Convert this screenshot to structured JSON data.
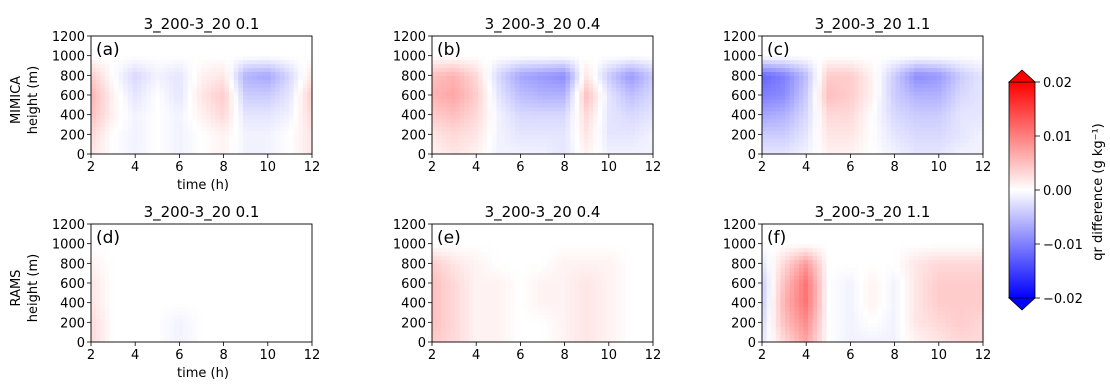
{
  "figure": {
    "colorbar": {
      "label": "qr difference (g kg⁻¹)",
      "ticks": [
        "0.02",
        "0.01",
        "0.00",
        "−0.01",
        "−0.02"
      ],
      "range": [
        -0.02,
        0.02
      ],
      "colors": {
        "min": "#0000ff",
        "mid": "#ffffff",
        "max": "#ff0000"
      },
      "extend": "both"
    },
    "row_labels": [
      {
        "model": "MIMICA",
        "ylabel": "height (m)"
      },
      {
        "model": "RAMS",
        "ylabel": "height (m)"
      }
    ],
    "xlabel": "time (h)"
  },
  "chart_data": [
    {
      "type": "heatmap",
      "tag": "(a)",
      "title": "3_200-3_20 0.1",
      "model": "MIMICA",
      "xlim": [
        2,
        12
      ],
      "ylim": [
        0,
        1200
      ],
      "xticks": [
        "2",
        "4",
        "6",
        "8",
        "10",
        "12"
      ],
      "yticks": [
        "0",
        "200",
        "400",
        "600",
        "800",
        "1000",
        "1200"
      ],
      "z_grid": {
        "x": [
          2,
          3,
          4,
          5,
          6,
          7,
          8,
          9,
          10,
          11,
          12
        ],
        "y": [
          0,
          200,
          400,
          600,
          800,
          1000,
          1200
        ],
        "z": [
          [
            0.002,
            0.0,
            -0.001,
            0.0,
            -0.001,
            0.0,
            0.001,
            -0.001,
            -0.001,
            0.0,
            0.002
          ],
          [
            0.003,
            0.0,
            -0.001,
            0.0,
            -0.001,
            0.0,
            0.001,
            -0.001,
            -0.001,
            0.0,
            0.002
          ],
          [
            0.005,
            0.001,
            -0.001,
            0.0,
            -0.001,
            0.001,
            0.003,
            -0.002,
            -0.002,
            -0.001,
            0.003
          ],
          [
            0.006,
            0.001,
            -0.002,
            0.0,
            -0.002,
            0.002,
            0.004,
            -0.004,
            -0.004,
            -0.002,
            0.004
          ],
          [
            0.004,
            0.0,
            -0.003,
            -0.001,
            -0.002,
            0.001,
            0.002,
            -0.006,
            -0.007,
            -0.003,
            0.002
          ],
          [
            0.0,
            0.0,
            0.0,
            0.0,
            0.0,
            0.0,
            0.0,
            0.0,
            0.0,
            0.0,
            0.0
          ],
          [
            0.0,
            0.0,
            0.0,
            0.0,
            0.0,
            0.0,
            0.0,
            0.0,
            0.0,
            0.0,
            0.0
          ]
        ]
      }
    },
    {
      "type": "heatmap",
      "tag": "(b)",
      "title": "3_200-3_20 0.4",
      "model": "MIMICA",
      "xlim": [
        2,
        12
      ],
      "ylim": [
        0,
        1200
      ],
      "xticks": [
        "2",
        "4",
        "6",
        "8",
        "10",
        "12"
      ],
      "yticks": [
        "0",
        "200",
        "400",
        "600",
        "800",
        "1000",
        "1200"
      ],
      "z_grid": {
        "x": [
          2,
          3,
          4,
          5,
          6,
          7,
          8,
          9,
          10,
          11,
          12
        ],
        "y": [
          0,
          200,
          400,
          600,
          800,
          1000,
          1200
        ],
        "z": [
          [
            0.001,
            0.002,
            0.001,
            -0.001,
            -0.001,
            -0.001,
            -0.002,
            0.001,
            -0.001,
            -0.001,
            -0.001
          ],
          [
            0.002,
            0.003,
            0.002,
            -0.001,
            -0.002,
            -0.002,
            -0.002,
            0.002,
            -0.002,
            -0.002,
            -0.001
          ],
          [
            0.004,
            0.005,
            0.003,
            -0.001,
            -0.003,
            -0.003,
            -0.003,
            0.003,
            -0.002,
            -0.003,
            -0.002
          ],
          [
            0.006,
            0.007,
            0.004,
            -0.002,
            -0.005,
            -0.006,
            -0.006,
            0.005,
            -0.002,
            -0.005,
            -0.003
          ],
          [
            0.005,
            0.006,
            0.003,
            -0.003,
            -0.007,
            -0.008,
            -0.009,
            0.002,
            -0.004,
            -0.008,
            -0.004
          ],
          [
            0.0,
            0.0,
            0.0,
            0.0,
            0.0,
            0.0,
            0.0,
            0.0,
            0.0,
            0.0,
            0.0
          ],
          [
            0.0,
            0.0,
            0.0,
            0.0,
            0.0,
            0.0,
            0.0,
            0.0,
            0.0,
            0.0,
            0.0
          ]
        ]
      }
    },
    {
      "type": "heatmap",
      "tag": "(c)",
      "title": "3_200-3_20 1.1",
      "model": "MIMICA",
      "xlim": [
        2,
        12
      ],
      "ylim": [
        0,
        1200
      ],
      "xticks": [
        "2",
        "4",
        "6",
        "8",
        "10",
        "12"
      ],
      "yticks": [
        "0",
        "200",
        "400",
        "600",
        "800",
        "1000",
        "1200"
      ],
      "z_grid": {
        "x": [
          2,
          3,
          4,
          5,
          6,
          7,
          8,
          9,
          10,
          11,
          12
        ],
        "y": [
          0,
          200,
          400,
          600,
          800,
          1000,
          1200
        ],
        "z": [
          [
            -0.002,
            -0.002,
            -0.001,
            0.001,
            0.001,
            0.0,
            -0.001,
            -0.002,
            -0.002,
            -0.001,
            -0.001
          ],
          [
            -0.004,
            -0.004,
            -0.002,
            0.002,
            0.002,
            0.0,
            -0.002,
            -0.003,
            -0.003,
            -0.002,
            -0.001
          ],
          [
            -0.007,
            -0.006,
            -0.003,
            0.003,
            0.003,
            0.0,
            -0.003,
            -0.004,
            -0.004,
            -0.002,
            -0.002
          ],
          [
            -0.01,
            -0.009,
            -0.004,
            0.005,
            0.004,
            0.001,
            -0.004,
            -0.006,
            -0.006,
            -0.003,
            -0.002
          ],
          [
            -0.012,
            -0.01,
            -0.005,
            0.004,
            0.004,
            0.001,
            -0.004,
            -0.009,
            -0.008,
            -0.004,
            -0.002
          ],
          [
            0.0,
            0.0,
            0.0,
            0.0,
            0.0,
            0.0,
            0.0,
            0.0,
            0.0,
            0.0,
            0.0
          ],
          [
            0.0,
            0.0,
            0.0,
            0.0,
            0.0,
            0.0,
            0.0,
            0.0,
            0.0,
            0.0,
            0.0
          ]
        ]
      }
    },
    {
      "type": "heatmap",
      "tag": "(d)",
      "title": "3_200-3_20 0.1",
      "model": "RAMS",
      "xlim": [
        2,
        12
      ],
      "ylim": [
        0,
        1200
      ],
      "xticks": [
        "2",
        "4",
        "6",
        "8",
        "10",
        "12"
      ],
      "yticks": [
        "0",
        "200",
        "400",
        "600",
        "800",
        "1000",
        "1200"
      ],
      "z_grid": {
        "x": [
          2,
          3,
          4,
          5,
          6,
          7,
          8,
          9,
          10,
          11,
          12
        ],
        "y": [
          0,
          200,
          400,
          600,
          800,
          1000,
          1200
        ],
        "z": [
          [
            0.003,
            0.0,
            0.0,
            0.0,
            -0.001,
            0.0,
            0.0,
            0.0,
            0.0,
            0.0,
            0.0
          ],
          [
            0.003,
            0.0,
            0.0,
            0.0,
            -0.001,
            0.0,
            0.0,
            0.0,
            0.0,
            0.0,
            0.0
          ],
          [
            0.002,
            0.0,
            0.0,
            0.0,
            0.0,
            0.0,
            0.0,
            0.0,
            0.0,
            0.0,
            0.0
          ],
          [
            0.002,
            0.0,
            0.0,
            0.0,
            0.0,
            0.0,
            0.0,
            0.0,
            0.0,
            0.0,
            0.0
          ],
          [
            0.001,
            0.0,
            0.0,
            0.0,
            0.0,
            0.0,
            0.0,
            0.0,
            0.0,
            0.0,
            0.0
          ],
          [
            0.0,
            0.0,
            0.0,
            0.0,
            0.0,
            0.0,
            0.0,
            0.0,
            0.0,
            0.0,
            0.0
          ],
          [
            0.0,
            0.0,
            0.0,
            0.0,
            0.0,
            0.0,
            0.0,
            0.0,
            0.0,
            0.0,
            0.0
          ]
        ]
      }
    },
    {
      "type": "heatmap",
      "tag": "(e)",
      "title": "3_200-3_20 0.4",
      "model": "RAMS",
      "xlim": [
        2,
        12
      ],
      "ylim": [
        0,
        1200
      ],
      "xticks": [
        "2",
        "4",
        "6",
        "8",
        "10",
        "12"
      ],
      "yticks": [
        "0",
        "200",
        "400",
        "600",
        "800",
        "1000",
        "1200"
      ],
      "z_grid": {
        "x": [
          2,
          3,
          4,
          5,
          6,
          7,
          8,
          9,
          10,
          11,
          12
        ],
        "y": [
          0,
          200,
          400,
          600,
          800,
          1000,
          1200
        ],
        "z": [
          [
            0.004,
            0.003,
            0.001,
            0.001,
            0.0,
            0.0,
            0.001,
            0.002,
            0.001,
            0.0,
            0.0
          ],
          [
            0.005,
            0.003,
            0.001,
            0.001,
            0.0,
            0.0,
            0.001,
            0.002,
            0.001,
            0.0,
            0.0
          ],
          [
            0.005,
            0.003,
            0.001,
            0.001,
            0.0,
            0.001,
            0.001,
            0.002,
            0.001,
            0.0,
            0.0
          ],
          [
            0.005,
            0.003,
            0.001,
            0.001,
            0.0,
            0.001,
            0.001,
            0.002,
            0.001,
            0.0,
            0.0
          ],
          [
            0.004,
            0.002,
            0.001,
            0.0,
            0.0,
            0.0,
            0.001,
            0.001,
            0.001,
            0.0,
            0.0
          ],
          [
            0.0,
            0.0,
            0.0,
            0.0,
            0.0,
            0.0,
            0.0,
            0.0,
            0.0,
            0.0,
            0.0
          ],
          [
            0.0,
            0.0,
            0.0,
            0.0,
            0.0,
            0.0,
            0.0,
            0.0,
            0.0,
            0.0,
            0.0
          ]
        ]
      }
    },
    {
      "type": "heatmap",
      "tag": "(f)",
      "title": "3_200-3_20 1.1",
      "model": "RAMS",
      "xlim": [
        2,
        12
      ],
      "ylim": [
        0,
        1200
      ],
      "xticks": [
        "2",
        "4",
        "6",
        "8",
        "10",
        "12"
      ],
      "yticks": [
        "0",
        "200",
        "400",
        "600",
        "800",
        "1000",
        "1200"
      ],
      "z_grid": {
        "x": [
          2,
          3,
          4,
          5,
          6,
          7,
          8,
          9,
          10,
          11,
          12
        ],
        "y": [
          0,
          200,
          400,
          600,
          800,
          1000,
          1200
        ],
        "z": [
          [
            -0.002,
            0.003,
            0.007,
            0.0,
            -0.001,
            -0.001,
            -0.001,
            0.001,
            0.002,
            0.003,
            0.003
          ],
          [
            -0.003,
            0.005,
            0.009,
            0.0,
            -0.001,
            0.0,
            -0.001,
            0.002,
            0.003,
            0.004,
            0.003
          ],
          [
            -0.004,
            0.006,
            0.011,
            0.0,
            -0.001,
            0.001,
            -0.001,
            0.002,
            0.004,
            0.004,
            0.004
          ],
          [
            -0.004,
            0.005,
            0.011,
            0.0,
            -0.001,
            0.001,
            -0.001,
            0.002,
            0.004,
            0.004,
            0.004
          ],
          [
            -0.002,
            0.003,
            0.008,
            0.0,
            0.0,
            0.0,
            0.0,
            0.002,
            0.003,
            0.003,
            0.003
          ],
          [
            0.0,
            0.0,
            0.0,
            0.0,
            0.0,
            0.0,
            0.0,
            0.0,
            0.0,
            0.0,
            0.0
          ],
          [
            0.0,
            0.0,
            0.0,
            0.0,
            0.0,
            0.0,
            0.0,
            0.0,
            0.0,
            0.0,
            0.0
          ]
        ]
      }
    }
  ]
}
